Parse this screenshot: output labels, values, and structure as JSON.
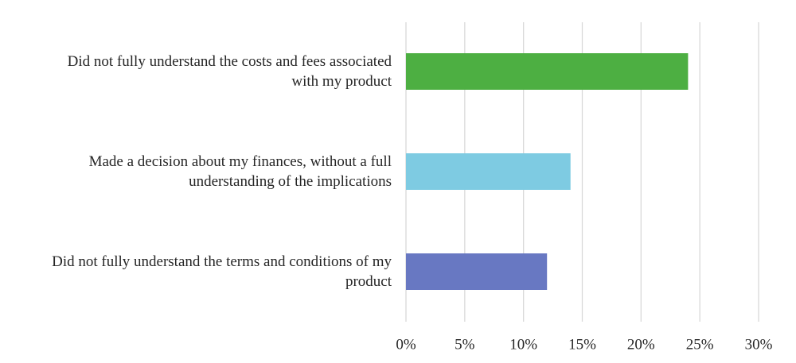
{
  "chart_data": {
    "type": "hbar",
    "categories": [
      "Did not fully understand the costs and fees associated with my product",
      "Made a decision about my finances, without a full understanding of the implications",
      "Did not fully understand the terms and conditions of my product"
    ],
    "values": [
      24,
      14,
      12
    ],
    "colors": [
      "#4daf42",
      "#7ecbe2",
      "#6878c2"
    ],
    "xlim": [
      0,
      30
    ],
    "xticks": [
      {
        "value": 0,
        "label": "0%"
      },
      {
        "value": 5,
        "label": "5%"
      },
      {
        "value": 10,
        "label": "10%"
      },
      {
        "value": 15,
        "label": "15%"
      },
      {
        "value": 20,
        "label": "20%"
      },
      {
        "value": 25,
        "label": "25%"
      },
      {
        "value": 30,
        "label": "30%"
      }
    ],
    "grid": true
  }
}
